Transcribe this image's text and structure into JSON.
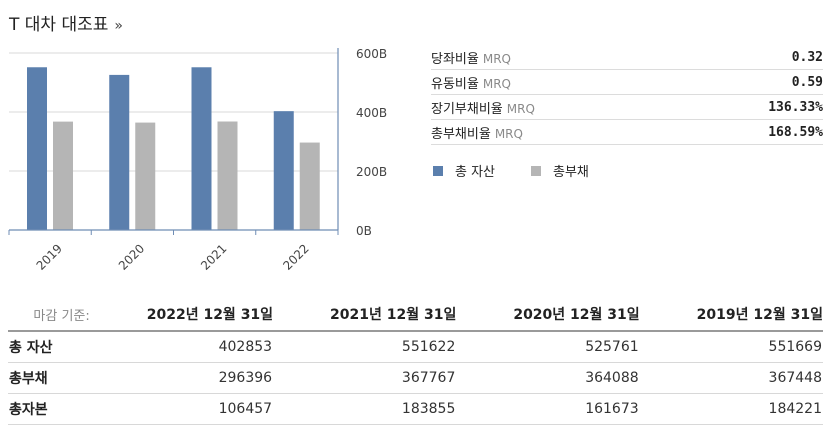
{
  "header": {
    "title": "T 대차 대조표",
    "more": "»"
  },
  "colors": {
    "total_assets": "#5b7fad",
    "total_liabilities": "#b5b5b5",
    "axis": "#6f8db5"
  },
  "chart_data": {
    "type": "bar",
    "categories": [
      "2019",
      "2020",
      "2021",
      "2022"
    ],
    "series": [
      {
        "name": "총 자산",
        "values": [
          551.669,
          525.761,
          551.622,
          402.853
        ]
      },
      {
        "name": "총부채",
        "values": [
          367.448,
          364.088,
          367.767,
          296.396
        ]
      }
    ],
    "ylim": [
      0,
      600
    ],
    "yticks": [
      0,
      200,
      400,
      600
    ],
    "ytick_labels": [
      "0B",
      "200B",
      "400B",
      "600B"
    ],
    "grid": true,
    "legend": "right"
  },
  "ratios": [
    {
      "label": "당좌비율",
      "unit": "MRQ",
      "value": "0.32"
    },
    {
      "label": "유동비율",
      "unit": "MRQ",
      "value": "0.59"
    },
    {
      "label": "장기부채비율",
      "unit": "MRQ",
      "value": "136.33%"
    },
    {
      "label": "총부채비율",
      "unit": "MRQ",
      "value": "168.59%"
    }
  ],
  "legend": {
    "assets": "총 자산",
    "liabilities": "총부채"
  },
  "table": {
    "caption": "마감 기준:",
    "columns": [
      "2022년 12월 31일",
      "2021년 12월 31일",
      "2020년 12월 31일",
      "2019년 12월 31일"
    ],
    "rows": [
      {
        "label": "총 자산",
        "values": [
          "402853",
          "551622",
          "525761",
          "551669"
        ]
      },
      {
        "label": "총부채",
        "values": [
          "296396",
          "367767",
          "364088",
          "367448"
        ]
      },
      {
        "label": "총자본",
        "values": [
          "106457",
          "183855",
          "161673",
          "184221"
        ]
      }
    ]
  }
}
